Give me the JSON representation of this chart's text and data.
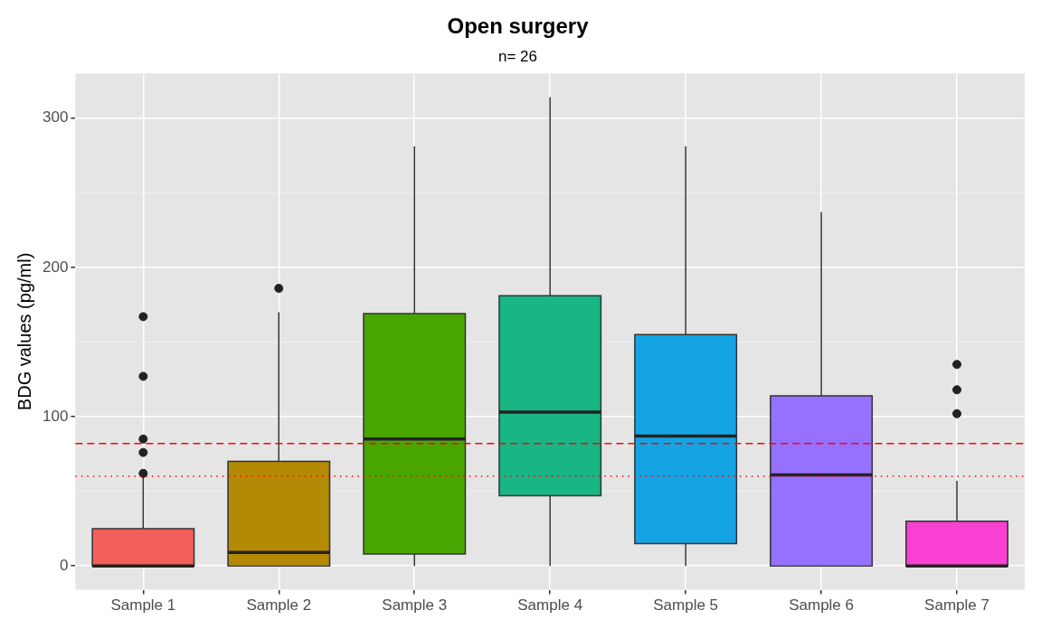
{
  "chart_data": {
    "type": "box",
    "title": "Open surgery",
    "subtitle": "n= 26",
    "ylabel": "BDG values (pg/ml)",
    "categories": [
      "Sample 1",
      "Sample 2",
      "Sample 3",
      "Sample 4",
      "Sample 5",
      "Sample 6",
      "Sample 7"
    ],
    "colors": [
      "#f35f5a",
      "#b48905",
      "#49a600",
      "#18b585",
      "#14a4e3",
      "#9670ff",
      "#f840d3"
    ],
    "boxes": [
      {
        "low": 0,
        "q1": 0,
        "median": 0,
        "q3": 25,
        "high": 60,
        "outliers": [
          62,
          76,
          85,
          127,
          167
        ]
      },
      {
        "low": 0,
        "q1": 0,
        "median": 9,
        "q3": 70,
        "high": 170,
        "outliers": [
          186
        ]
      },
      {
        "low": 0,
        "q1": 8,
        "median": 85,
        "q3": 169,
        "high": 281
      },
      {
        "low": 0,
        "q1": 47,
        "median": 103,
        "q3": 181,
        "high": 314
      },
      {
        "low": 0,
        "q1": 15,
        "median": 87,
        "q3": 155,
        "high": 281
      },
      {
        "low": 0,
        "q1": 0,
        "median": 61,
        "q3": 114,
        "high": 237
      },
      {
        "low": 0,
        "q1": 0,
        "median": 0,
        "q3": 30,
        "high": 57,
        "outliers": [
          102,
          118,
          135
        ]
      }
    ],
    "ylim": [
      -16,
      330
    ],
    "yticks": [
      0,
      {
        "value": 50,
        "label": null
      },
      100,
      {
        "value": 150,
        "label": null
      },
      200,
      {
        "value": 250,
        "label": null
      },
      300
    ],
    "ref_lines": [
      {
        "axis": "y",
        "value": 82,
        "color": "#ff0000",
        "line_style": "dashed"
      },
      {
        "axis": "y",
        "value": 60,
        "color": "#ff0000",
        "line_style": "dotted"
      }
    ],
    "grid": true,
    "legend": false
  }
}
